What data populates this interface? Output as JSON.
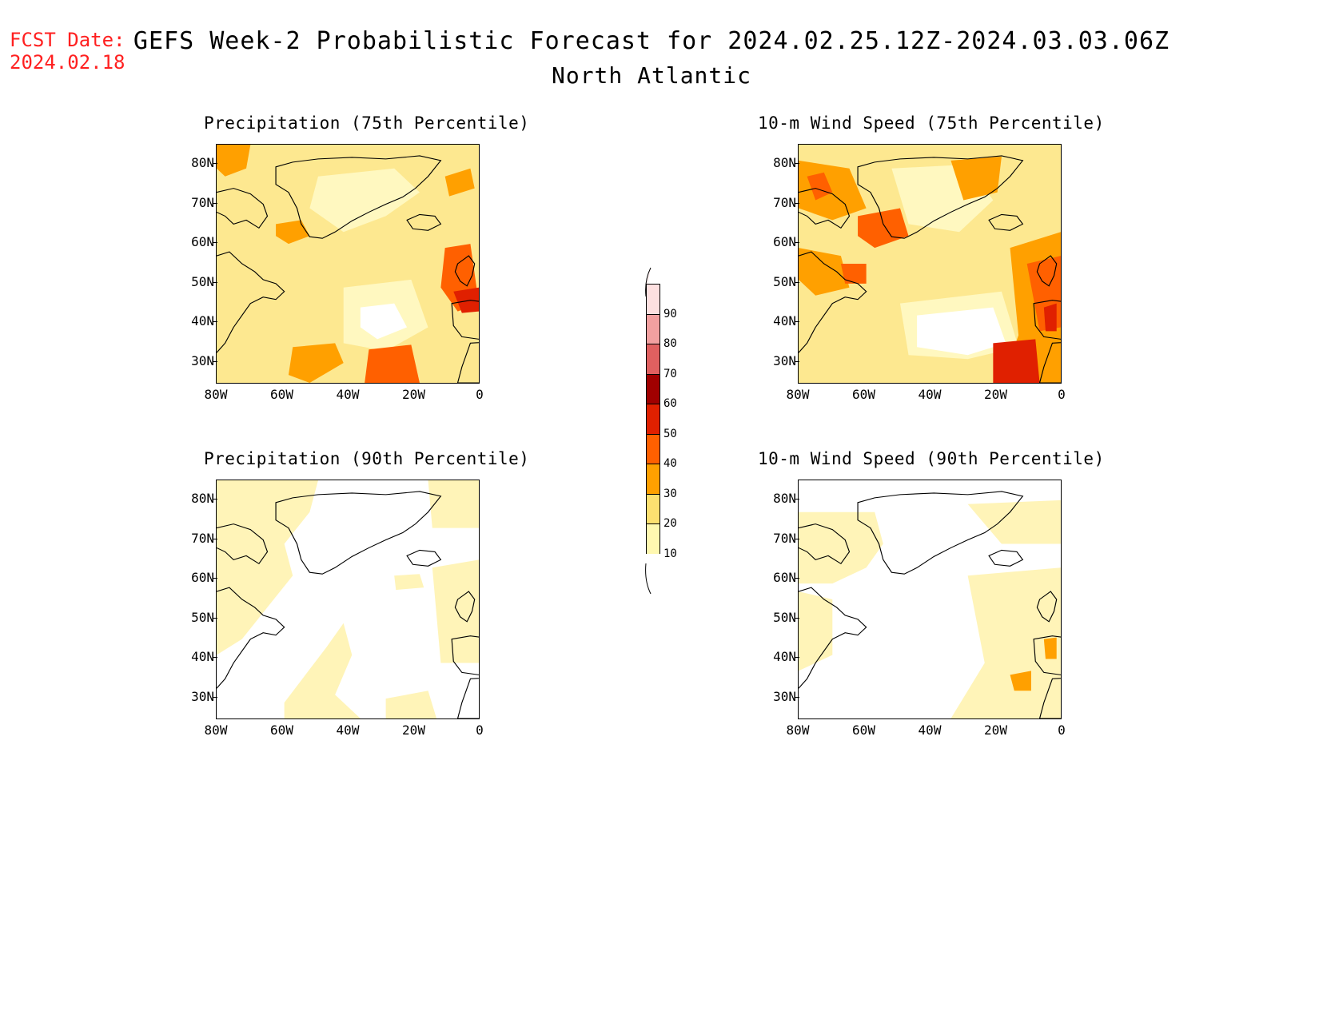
{
  "header": {
    "fcst_label": "FCST Date:",
    "fcst_date": "2024.02.18",
    "title": "GEFS Week-2 Probabilistic Forecast for 2024.02.25.12Z-2024.03.03.06Z",
    "subtitle": "North Atlantic"
  },
  "axes": {
    "lat_labels": [
      "80N",
      "70N",
      "60N",
      "50N",
      "40N",
      "30N"
    ],
    "lon_labels": [
      "80W",
      "60W",
      "40W",
      "20W",
      "0"
    ]
  },
  "panels": [
    {
      "id": "precip75",
      "title": "Precipitation (75th Percentile)",
      "level": "high-mixed"
    },
    {
      "id": "wind75",
      "title": "10-m Wind Speed (75th Percentile)",
      "level": "high-strong"
    },
    {
      "id": "precip90",
      "title": "Precipitation (90th Percentile)",
      "level": "low"
    },
    {
      "id": "wind90",
      "title": "10-m Wind Speed (90th Percentile)",
      "level": "low-mixed"
    }
  ],
  "colorbar": {
    "labels": [
      "90",
      "80",
      "70",
      "60",
      "50",
      "40",
      "30",
      "20",
      "10"
    ],
    "colors": [
      "#fde0e0",
      "#f2a0a0",
      "#e06060",
      "#a00000",
      "#e02000",
      "#ff6000",
      "#ffa000",
      "#fde070",
      "#fff8b0"
    ]
  }
}
